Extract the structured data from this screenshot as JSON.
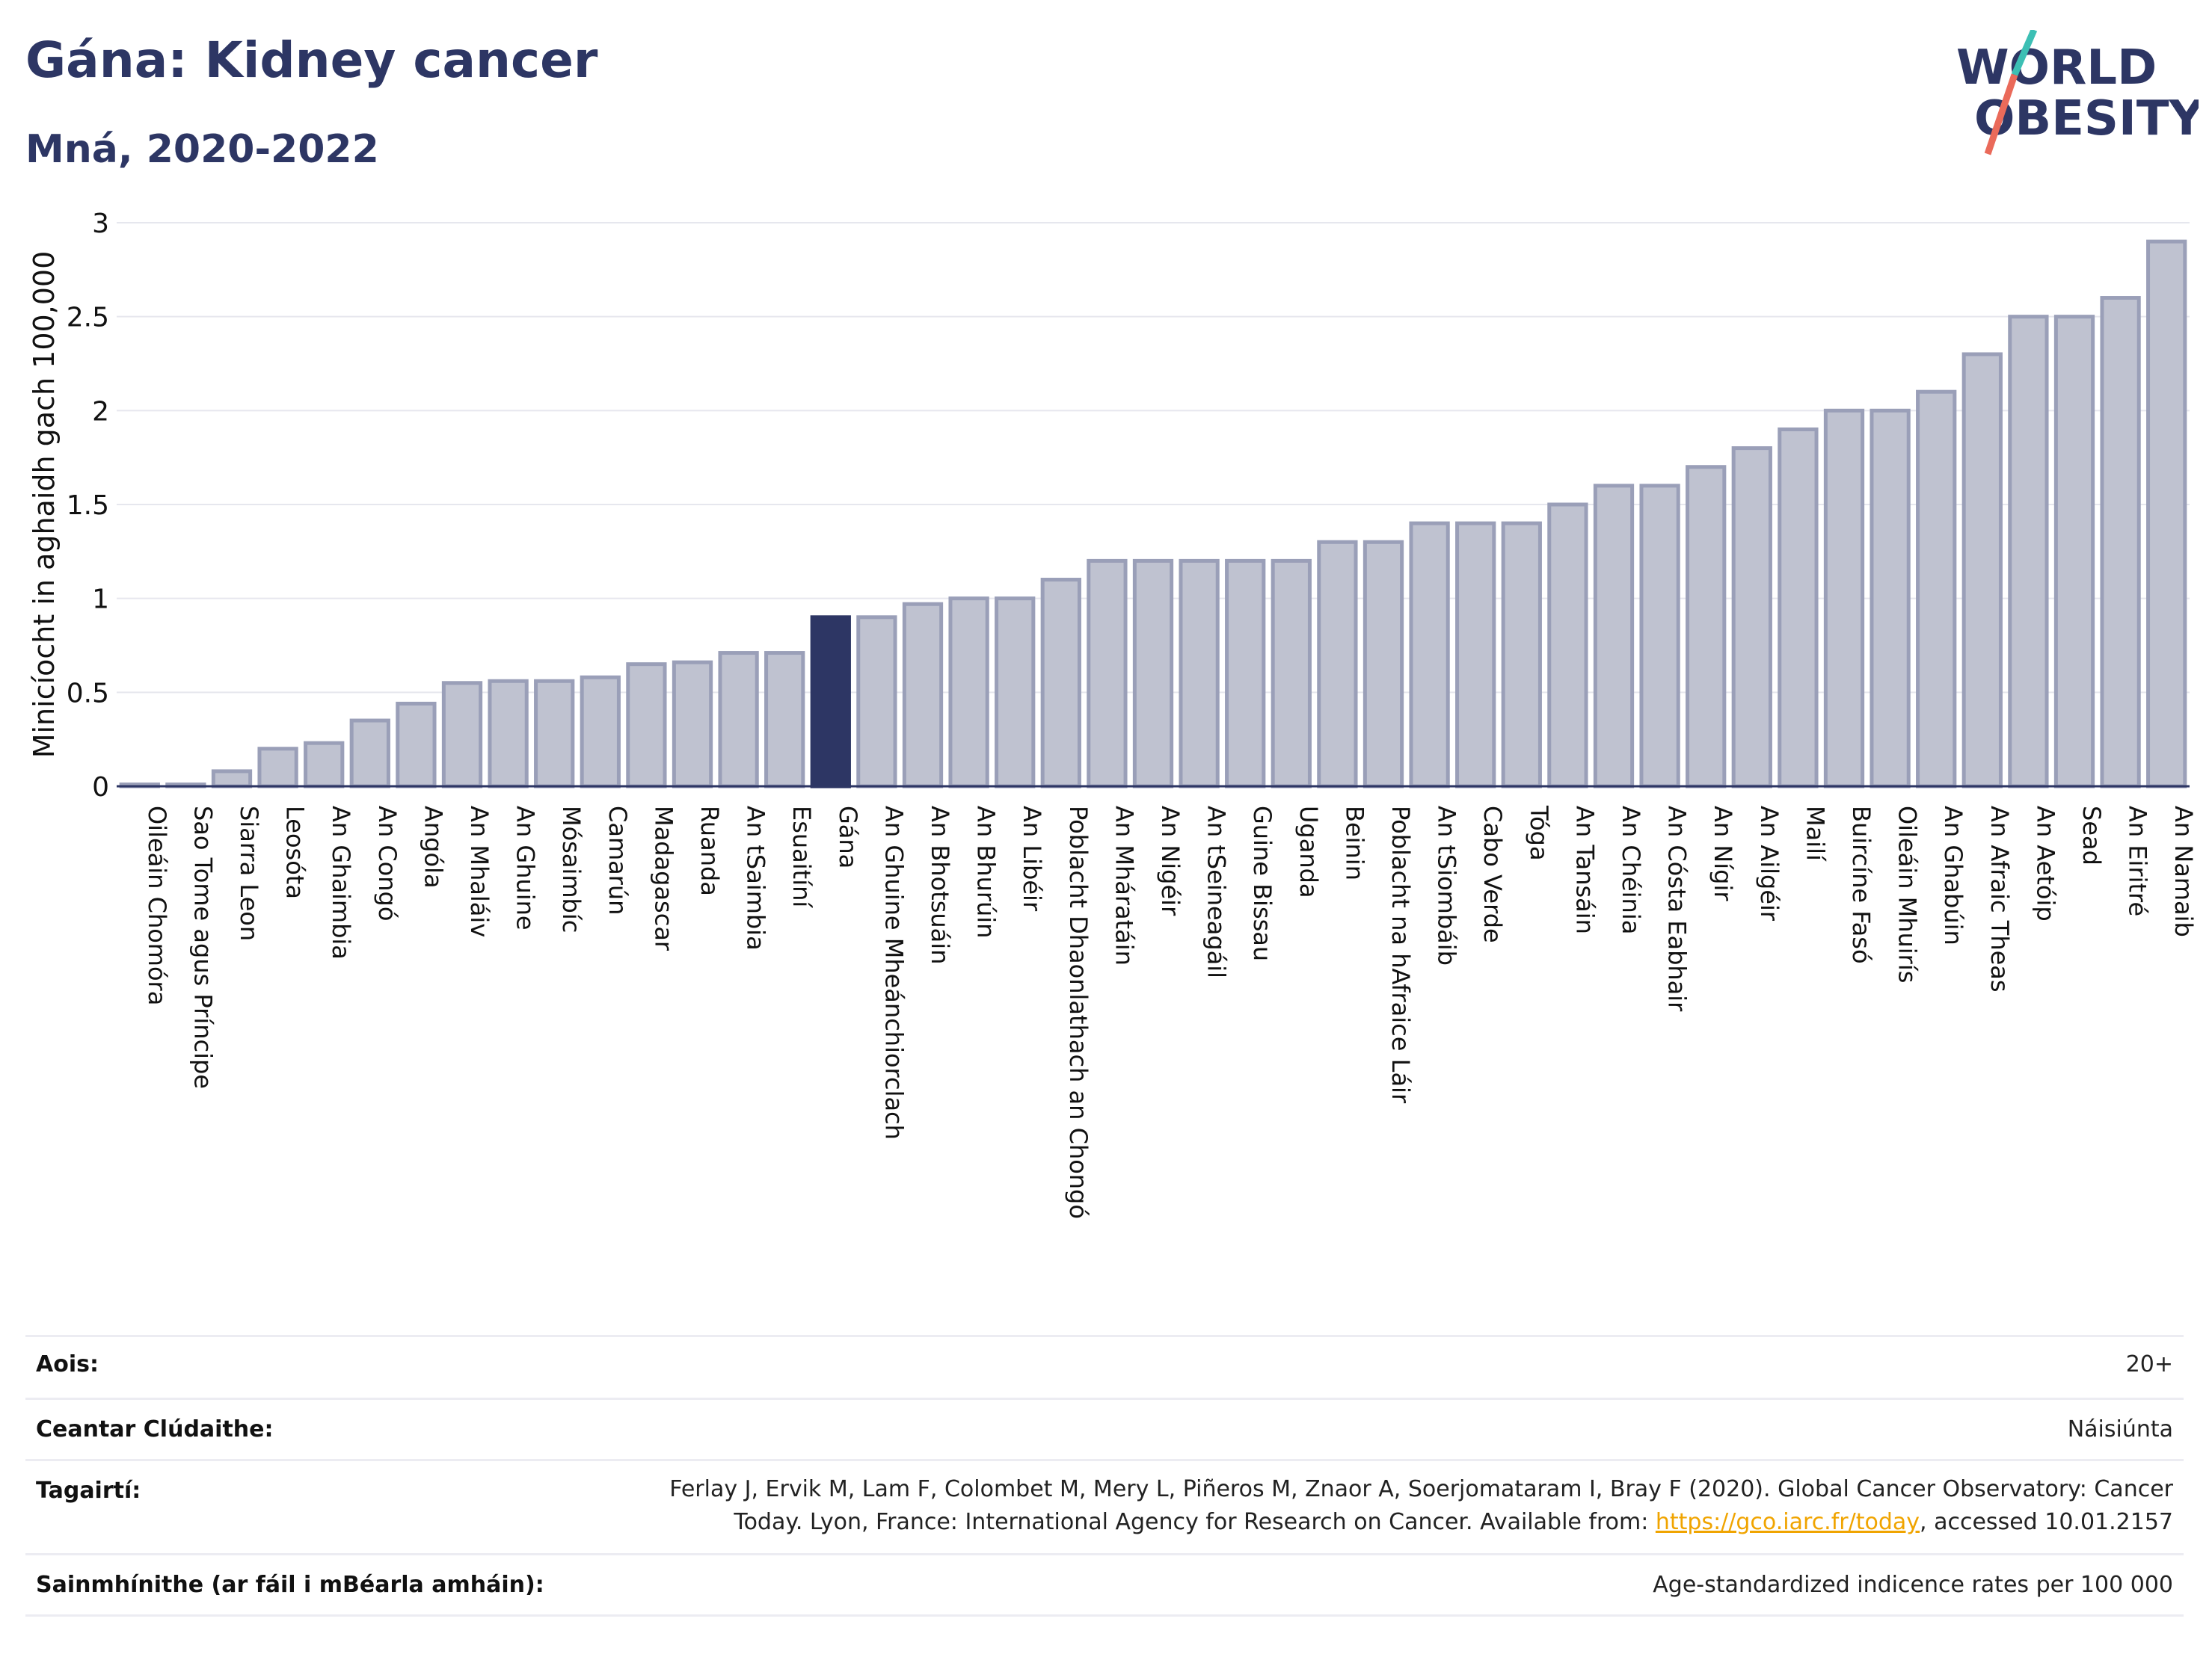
{
  "header": {
    "title": "Gána: Kidney cancer",
    "subtitle": "Mná, 2020-2022"
  },
  "logo": {
    "line1": "WORLD",
    "line2": "OBESITY",
    "accent_colors": [
      "#3cbfb4",
      "#ea6a5a"
    ]
  },
  "colors": {
    "bar_fill": "#bfc2d0",
    "bar_stroke": "#9a9fb8",
    "highlight_fill": "#2d3664",
    "text": "#2d3664"
  },
  "chart_data": {
    "type": "bar",
    "ylabel": "Minicíocht in aghaidh gach 100,000",
    "ylim": [
      0,
      3
    ],
    "yticks": [
      0,
      0.5,
      1,
      1.5,
      2,
      2.5,
      3
    ],
    "ytick_labels": [
      "0",
      "0.5",
      "1",
      "1.5",
      "2",
      "2.5",
      "3"
    ],
    "grid": true,
    "highlight": "Gána",
    "categories": [
      "Oileáin Chomóra",
      "Sao Tome agus Príncipe",
      "Siarra Leon",
      "Leosóta",
      "An Ghaimbia",
      "An Congó",
      "Angóla",
      "An Mhaláiv",
      "An Ghuine",
      "Mósaimbíc",
      "Camarún",
      "Madagascar",
      "Ruanda",
      "An tSaimbia",
      "Esuaitíní",
      "Gána",
      "An Ghuine Mheánchiorclach",
      "An Bhotsuáin",
      "An Bhurúin",
      "An Libéir",
      "Poblacht Dhaonlathach an Chongó",
      "An Mháratáin",
      "An Nigéir",
      "An tSeineagáil",
      "Guine Bissau",
      "Uganda",
      "Beinin",
      "Poblacht na hAfraice Láir",
      "An tSiombáib",
      "Cabo Verde",
      "Tóga",
      "An Tansáin",
      "An Chéinia",
      "An Cósta Eabhair",
      "An Nígir",
      "An Ailgéir",
      "Mailí",
      "Buircíne Fasó",
      "Oileáin Mhuirís",
      "An Ghabúin",
      "An Afraic Theas",
      "An Aetóip",
      "Sead",
      "An Eiritré",
      "An Namaib"
    ],
    "values": [
      0.01,
      0.01,
      0.08,
      0.2,
      0.23,
      0.35,
      0.44,
      0.55,
      0.56,
      0.56,
      0.58,
      0.65,
      0.66,
      0.71,
      0.71,
      0.9,
      0.9,
      0.97,
      1.0,
      1.0,
      1.1,
      1.2,
      1.2,
      1.2,
      1.2,
      1.2,
      1.3,
      1.3,
      1.4,
      1.4,
      1.4,
      1.5,
      1.6,
      1.6,
      1.7,
      1.8,
      1.9,
      2.0,
      2.0,
      2.1,
      2.3,
      2.5,
      2.5,
      2.6,
      2.9
    ]
  },
  "meta": {
    "age_label": "Aois:",
    "age_value": "20+",
    "area_label": "Ceantar Clúdaithe:",
    "area_value": "Náisiúnta",
    "ref_label": "Tagairtí:",
    "ref_line1": "Ferlay J, Ervik M, Lam F, Colombet M, Mery L, Piñeros M, Znaor A, Soerjomataram I, Bray F (2020). Global Cancer Observatory: Cancer",
    "ref_line2_pre": "Today. Lyon, France: International Agency for Research on Cancer. Available from: ",
    "ref_link": "https://gco.iarc.fr/today",
    "ref_line2_post": ", accessed 10.01.2157",
    "def_label": "Sainmhínithe (ar fáil i mBéarla amháin):",
    "def_value": "Age-standardized indicence rates per 100 000"
  }
}
